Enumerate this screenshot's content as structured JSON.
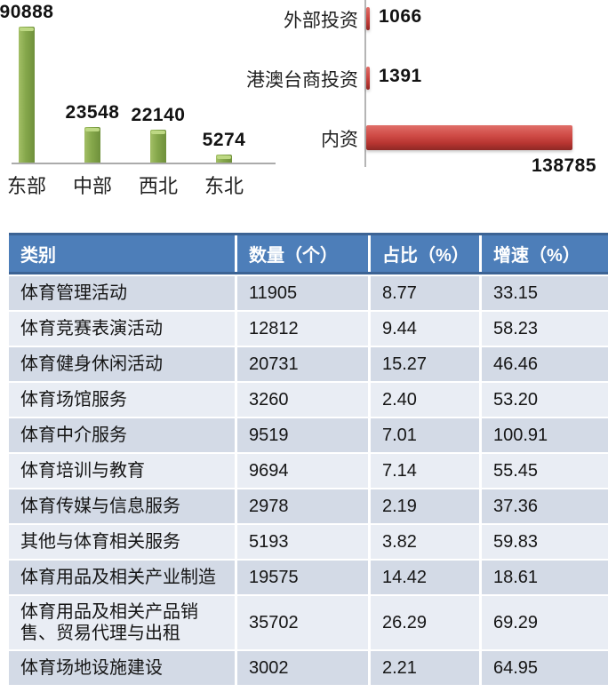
{
  "chart_data": [
    {
      "type": "bar",
      "orientation": "vertical",
      "title": "",
      "categories": [
        "东部",
        "中部",
        "西北",
        "东北"
      ],
      "values": [
        90888,
        23548,
        22140,
        5274
      ],
      "value_labels": [
        "90888",
        "23548",
        "22140",
        "5274"
      ],
      "ylim": [
        0,
        95000
      ],
      "grid": false,
      "legend": "none",
      "bar_color": "#85a74b"
    },
    {
      "type": "bar",
      "orientation": "horizontal",
      "title": "",
      "categories": [
        "外部投资",
        "港澳台商投资",
        "内资"
      ],
      "values": [
        1066,
        1391,
        138785
      ],
      "value_labels": [
        "1066",
        "1391",
        "138785"
      ],
      "xlim": [
        0,
        140000
      ],
      "grid": false,
      "legend": "none",
      "bar_color": "#c0392b"
    }
  ],
  "table": {
    "headers": [
      "类别",
      "数量（个）",
      "占比（%）",
      "增速（%）"
    ],
    "rows": [
      [
        "体育管理活动",
        "11905",
        "8.77",
        "33.15"
      ],
      [
        "体育竞赛表演活动",
        "12812",
        "9.44",
        "58.23"
      ],
      [
        "体育健身休闲活动",
        "20731",
        "15.27",
        "46.46"
      ],
      [
        "体育场馆服务",
        "3260",
        "2.40",
        "53.20"
      ],
      [
        "体育中介服务",
        "9519",
        "7.01",
        "100.91"
      ],
      [
        "体育培训与教育",
        "9694",
        "7.14",
        "55.45"
      ],
      [
        "体育传媒与信息服务",
        "2978",
        "2.19",
        "37.36"
      ],
      [
        "其他与体育相关服务",
        "5193",
        "3.82",
        "59.83"
      ],
      [
        "体育用品及相关产业制造",
        "19575",
        "14.42",
        "18.61"
      ],
      [
        "体育用品及相关产品销售、贸易代理与出租",
        "35702",
        "26.29",
        "69.29"
      ],
      [
        "体育场地设施建设",
        "3002",
        "2.21",
        "64.95"
      ]
    ]
  },
  "colors": {
    "table_header_bg": "#4d7eb9",
    "table_row_odd": "#d3dae6",
    "table_row_even": "#e9edf4",
    "green_bar": "#85a74b",
    "red_bar": "#c0392b",
    "axis_line": "#ababab"
  }
}
